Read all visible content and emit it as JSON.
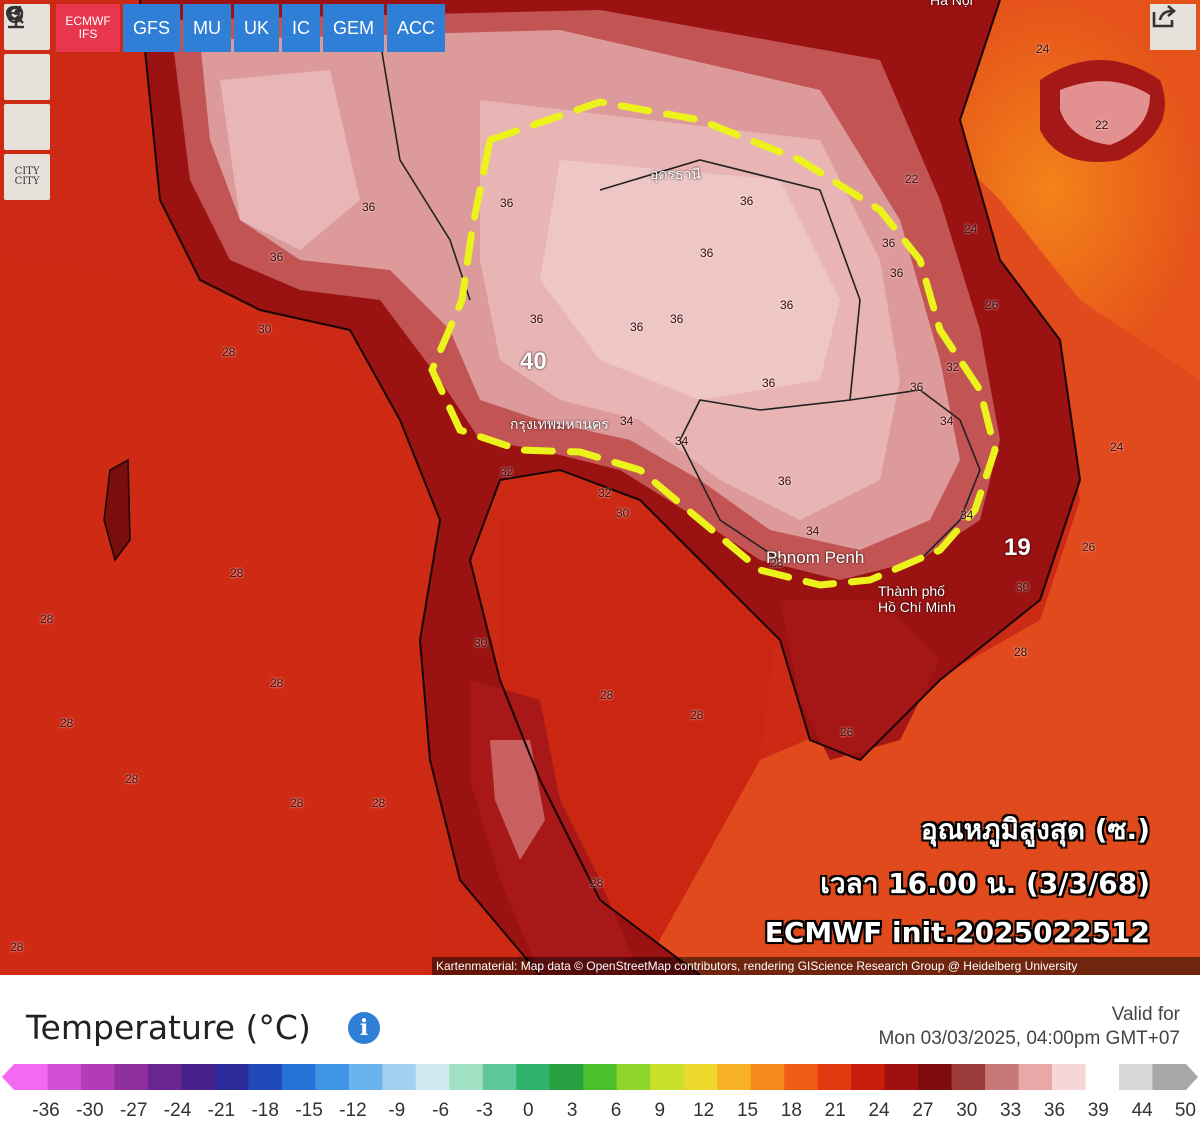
{
  "toolbar": {
    "tools": [
      {
        "name": "refresh-icon"
      },
      {
        "name": "location-pin-icon"
      },
      {
        "name": "zoom-icon"
      },
      {
        "name": "city-toggle",
        "label": "CITY\nCITY"
      }
    ],
    "models": [
      {
        "label": "ECMWF\nIFS",
        "active": true
      },
      {
        "label": "GFS",
        "active": false
      },
      {
        "label": "MU",
        "active": false
      },
      {
        "label": "UK",
        "active": false
      },
      {
        "label": "IC",
        "active": false
      },
      {
        "label": "GEM",
        "active": false
      },
      {
        "label": "ACC",
        "active": false
      }
    ],
    "share_icon": "share-icon"
  },
  "map": {
    "overlay_lines": [
      "อุณหภูมิสูงสุด (ซ.)",
      "เวลา 16.00 น. (3/3/68)",
      "ECMWF init.2025022512"
    ],
    "attribution": "Kartenmaterial: Map data © OpenStreetMap contributors, rendering GIScience Research Group @ Heidelberg University",
    "places": [
      "กรุงเทพมหานคร",
      "Phnom Penh",
      "Thành phố\nHồ Chí Minh",
      "อุดรธานี",
      "Hà Nội"
    ],
    "highlight_values": [
      "40",
      "19"
    ],
    "contour_labels": [
      "36",
      "36",
      "36",
      "36",
      "36",
      "36",
      "36",
      "36",
      "36",
      "36",
      "36",
      "36",
      "36",
      "36",
      "34",
      "34",
      "34",
      "34",
      "34",
      "32",
      "32",
      "32",
      "30",
      "30",
      "30",
      "30",
      "28",
      "28",
      "28",
      "28",
      "28",
      "28",
      "28",
      "28",
      "28",
      "28",
      "28",
      "28",
      "28",
      "28",
      "26",
      "26",
      "26",
      "24",
      "24",
      "24",
      "22",
      "22"
    ],
    "colors": {
      "sea": "#c81c0c",
      "land_hot": "#e8a0a0",
      "land_very_hot": "#f2c8c8",
      "dash": "#ecf21c"
    }
  },
  "legend": {
    "title": "Temperature (°C)",
    "info_icon": "info-icon",
    "valid_label": "Valid for",
    "valid_time": "Mon 03/03/2025, 04:00pm GMT+07",
    "ticks": [
      "-36",
      "-30",
      "-27",
      "-24",
      "-21",
      "-18",
      "-15",
      "-12",
      "-9",
      "-6",
      "-3",
      "0",
      "3",
      "6",
      "9",
      "12",
      "15",
      "18",
      "21",
      "24",
      "27",
      "30",
      "33",
      "36",
      "39",
      "44",
      "50"
    ],
    "colors": [
      "#f36af0",
      "#d54fd6",
      "#b23bb8",
      "#8f2f9e",
      "#6a2690",
      "#47208a",
      "#2a2a9a",
      "#1f4ab8",
      "#2672d8",
      "#3f95e6",
      "#6ab4ee",
      "#a3d1f2",
      "#cfe9f2",
      "#a2e0c4",
      "#5fc89a",
      "#2fb26a",
      "#26a040",
      "#4cc02a",
      "#8fd62a",
      "#c8e02a",
      "#ecd82a",
      "#f6b224",
      "#f48a1c",
      "#ee5e16",
      "#e23a10",
      "#c81c0c",
      "#a01010",
      "#7e0c0c",
      "#9a3a3a",
      "#c87878",
      "#e8a8a8",
      "#f6d6d6",
      "#ffffff",
      "#d8d8d8",
      "#a8a8a8"
    ]
  }
}
